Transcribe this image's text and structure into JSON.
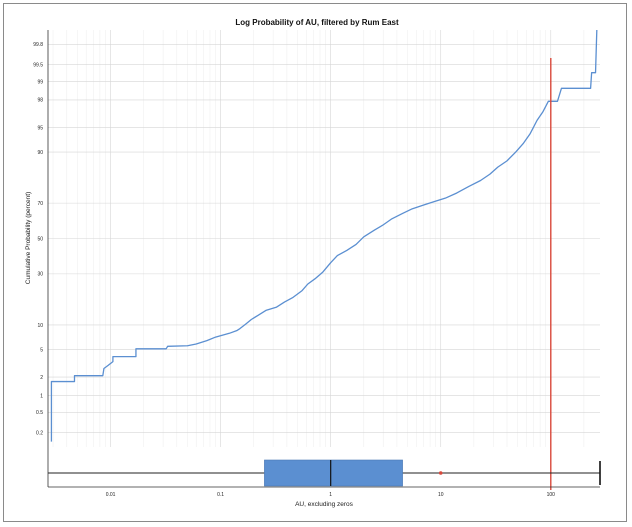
{
  "chart_data": {
    "type": "line",
    "title": "Log Probability of AU, filtered by Rum East",
    "xlabel": "AU, excluding zeros",
    "ylabel": "Cumulative Probability (percent)",
    "x_scale": "log",
    "y_scale": "probability",
    "xlim": [
      0.0027,
      280
    ],
    "ylim": [
      0.1,
      99.9
    ],
    "x_ticks": [
      {
        "value": 0.01,
        "label": "0.01"
      },
      {
        "value": 0.1,
        "label": "0.1"
      },
      {
        "value": 1,
        "label": "1"
      },
      {
        "value": 10,
        "label": "10"
      },
      {
        "value": 100,
        "label": "100"
      }
    ],
    "y_ticks": [
      {
        "value": 0.2,
        "label": "0.2"
      },
      {
        "value": 0.5,
        "label": "0.5"
      },
      {
        "value": 1,
        "label": "1"
      },
      {
        "value": 2,
        "label": "2"
      },
      {
        "value": 5,
        "label": "5"
      },
      {
        "value": 10,
        "label": "10"
      },
      {
        "value": 30,
        "label": "30"
      },
      {
        "value": 50,
        "label": "50"
      },
      {
        "value": 70,
        "label": "70"
      },
      {
        "value": 90,
        "label": "90"
      },
      {
        "value": 95,
        "label": "95"
      },
      {
        "value": 98,
        "label": "98"
      },
      {
        "value": 99,
        "label": "99"
      },
      {
        "value": 99.5,
        "label": "99.5"
      },
      {
        "value": 99.8,
        "label": "99.8"
      }
    ],
    "grid": true,
    "series": [
      {
        "color": "#5b8fd1",
        "points": [
          [
            0.0029,
            0.13
          ],
          [
            0.0029,
            1.7
          ],
          [
            0.0047,
            1.7
          ],
          [
            0.0047,
            2.1
          ],
          [
            0.0085,
            2.1
          ],
          [
            0.0087,
            2.7
          ],
          [
            0.0095,
            3.0
          ],
          [
            0.0105,
            3.4
          ],
          [
            0.0105,
            4.0
          ],
          [
            0.017,
            4.0
          ],
          [
            0.017,
            5.1
          ],
          [
            0.032,
            5.1
          ],
          [
            0.033,
            5.5
          ],
          [
            0.05,
            5.6
          ],
          [
            0.06,
            5.9
          ],
          [
            0.075,
            6.5
          ],
          [
            0.09,
            7.2
          ],
          [
            0.12,
            8.0
          ],
          [
            0.14,
            8.6
          ],
          [
            0.15,
            9.1
          ],
          [
            0.17,
            10.3
          ],
          [
            0.19,
            11.5
          ],
          [
            0.22,
            12.8
          ],
          [
            0.26,
            14.4
          ],
          [
            0.32,
            15.4
          ],
          [
            0.38,
            17.3
          ],
          [
            0.45,
            19.0
          ],
          [
            0.55,
            22.0
          ],
          [
            0.62,
            25.0
          ],
          [
            0.72,
            27.5
          ],
          [
            0.85,
            31.0
          ],
          [
            1.0,
            36.0
          ],
          [
            1.15,
            40.0
          ],
          [
            1.4,
            43.0
          ],
          [
            1.7,
            46.5
          ],
          [
            2.0,
            51.0
          ],
          [
            2.5,
            55.0
          ],
          [
            3.0,
            58.0
          ],
          [
            3.6,
            61.5
          ],
          [
            4.5,
            64.5
          ],
          [
            5.5,
            67.0
          ],
          [
            7.0,
            69.0
          ],
          [
            9.0,
            71.0
          ],
          [
            11.0,
            72.5
          ],
          [
            14.0,
            75.0
          ],
          [
            18.0,
            78.0
          ],
          [
            23.0,
            80.5
          ],
          [
            28.0,
            83.0
          ],
          [
            33.0,
            85.5
          ],
          [
            40.0,
            87.5
          ],
          [
            48.0,
            90.0
          ],
          [
            56.0,
            92.0
          ],
          [
            65.0,
            94.0
          ],
          [
            75.0,
            96.0
          ],
          [
            85.0,
            97.0
          ],
          [
            95.0,
            97.9
          ],
          [
            115.0,
            97.9
          ],
          [
            125.0,
            98.7
          ],
          [
            230.0,
            98.7
          ],
          [
            235.0,
            99.3
          ],
          [
            255.0,
            99.3
          ],
          [
            262.0,
            99.9
          ]
        ]
      }
    ],
    "reference_line": {
      "x": 100,
      "color": "#d9483b"
    },
    "boxplot": {
      "whisker_low": 0.0027,
      "q1": 0.25,
      "median": 1.0,
      "q3": 4.5,
      "whisker_high": 280,
      "outlier": 10,
      "box_color": "#5b8fd1",
      "outlier_color": "#d9483b"
    }
  }
}
